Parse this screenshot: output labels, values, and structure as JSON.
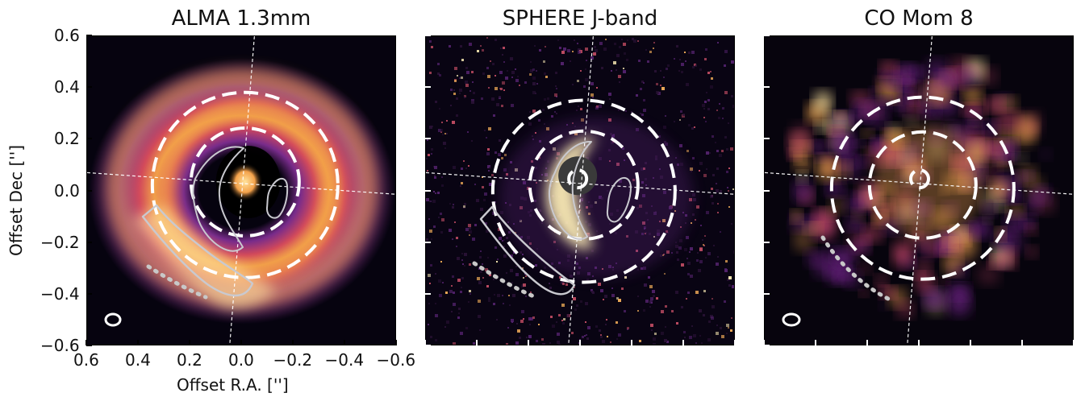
{
  "panels": [
    {
      "title": "ALMA 1.3mm",
      "kind": "alma",
      "colors": {
        "background": "#06030f",
        "outer": "#7a2c8d",
        "mid": "#d64a5d",
        "inner": "#f4a14a",
        "hot": "#ffe39d"
      },
      "beam_shape": "ellipse"
    },
    {
      "title": "SPHERE J-band",
      "kind": "sphere",
      "colors": {
        "background": "#090413",
        "outer": "#55236f",
        "mid": "#c84f66",
        "inner": "#f6b05a",
        "hot": "#fff0b8"
      },
      "beam_shape": "none"
    },
    {
      "title": "CO Mom 8",
      "kind": "co",
      "colors": {
        "background": "#07040d",
        "outer": "#692080",
        "mid": "#c54768",
        "inner": "#f0a34e",
        "hot": "#ffe6a1"
      },
      "beam_shape": "ellipse"
    }
  ],
  "axes": {
    "x_label": "Offset R.A. ['']",
    "y_label": "Offset Dec ['']",
    "x_ticks": [
      "0.6",
      "0.4",
      "0.2",
      "0.0",
      "−0.2",
      "−0.4",
      "−0.6"
    ],
    "y_ticks": [
      "0.6",
      "0.4",
      "0.2",
      "0.0",
      "−0.2",
      "−0.4",
      "−0.6"
    ]
  },
  "overlay": {
    "guide_line_color": "#ffffff",
    "ring_color": "#ffffff",
    "contour_color": "#c9c9cf",
    "dotted_color": "#c8c8c8"
  }
}
